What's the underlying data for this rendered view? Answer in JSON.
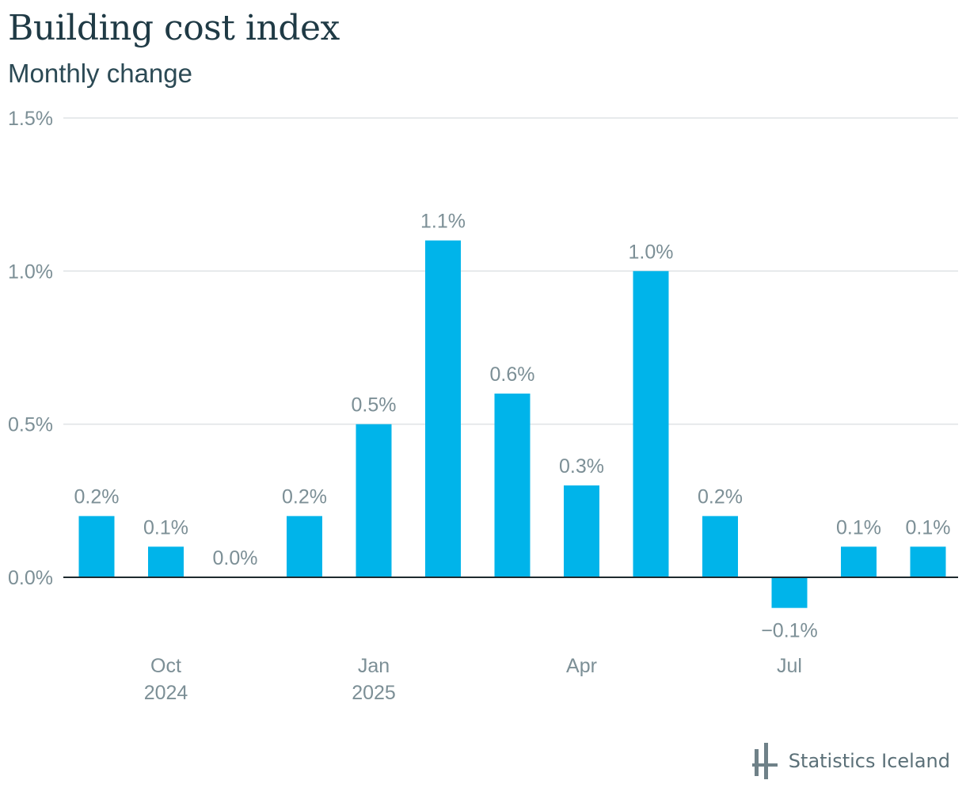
{
  "header": {
    "title": "Building cost index",
    "subtitle": "Monthly change"
  },
  "footer": {
    "brand": "Statistics Iceland",
    "logo_icon": "statistics-iceland-logo-icon"
  },
  "colors": {
    "bar": "#00b4ea",
    "grid": "#dfe3e5",
    "axis": "#1f2a2e",
    "label": "#7c8f96"
  },
  "chart_data": {
    "type": "bar",
    "categories": [
      "2024-09",
      "2024-10",
      "2024-11",
      "2024-12",
      "2025-01",
      "2025-02",
      "2025-03",
      "2025-04",
      "2025-05",
      "2025-06",
      "2025-07",
      "2025-08",
      "2025-09"
    ],
    "values": [
      0.2,
      0.1,
      0.0,
      0.2,
      0.5,
      1.1,
      0.6,
      0.3,
      1.0,
      0.2,
      -0.1,
      0.1,
      0.1
    ],
    "value_labels": [
      "0.2%",
      "0.1%",
      "0.0%",
      "0.2%",
      "0.5%",
      "1.1%",
      "0.6%",
      "0.3%",
      "1.0%",
      "0.2%",
      "−0.1%",
      "0.1%",
      "0.1%"
    ],
    "ylim": [
      -0.1,
      1.5
    ],
    "yticks": [
      0.0,
      0.5,
      1.0,
      1.5
    ],
    "ytick_labels": [
      "0.0%",
      "0.5%",
      "1.0%",
      "1.5%"
    ],
    "xticks": [
      {
        "category": "2024-10",
        "line1": "Oct",
        "line2": "2024"
      },
      {
        "category": "2025-01",
        "line1": "Jan",
        "line2": "2025"
      },
      {
        "category": "2025-04",
        "line1": "Apr",
        "line2": ""
      },
      {
        "category": "2025-07",
        "line1": "Jul",
        "line2": ""
      }
    ],
    "grid": true,
    "legend": "none"
  }
}
